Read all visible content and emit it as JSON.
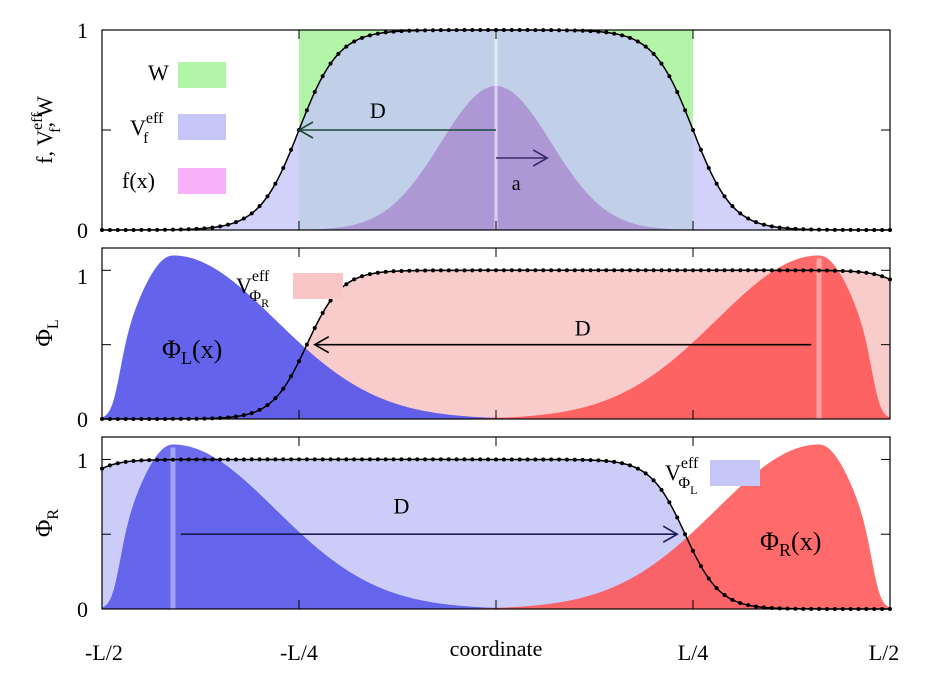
{
  "chart_data": [
    {
      "type": "area",
      "panel": "top",
      "ylabel": {
        "base": "f, V",
        "sup": "eff",
        "sub": "f",
        "tail": ", W"
      },
      "yticks": [
        "0",
        "1"
      ],
      "ylim": [
        0,
        1
      ],
      "xlim": [
        -0.5,
        0.5
      ],
      "legend": [
        {
          "label": "W",
          "color": "#b3f5a8"
        },
        {
          "label": "V",
          "sup": "eff",
          "sub": "f",
          "color": "#c6c6f8"
        },
        {
          "label": "f(x)",
          "color": "#f8b0f8"
        }
      ],
      "series": [
        {
          "name": "W",
          "kind": "box",
          "from": -0.25,
          "to": 0.25,
          "value": 1,
          "color": "#b3f5a8"
        },
        {
          "name": "V_f^eff",
          "kind": "sigmoid",
          "value": 1,
          "edges": [
            -0.25,
            0.25
          ],
          "width": 0.025,
          "color": "#c6c6f8"
        },
        {
          "name": "f(x)",
          "kind": "gaussian",
          "center": 0,
          "peak": 0.72,
          "sigma": 0.07,
          "color": "#a888d0"
        }
      ],
      "annotations": [
        {
          "label": "D",
          "from": 0,
          "to": -0.25,
          "y": 0.5
        },
        {
          "label": "a",
          "from": 0,
          "to": 0.065,
          "y": 0.36
        }
      ]
    },
    {
      "type": "area",
      "panel": "middle",
      "ylabel": {
        "base": "Φ",
        "sub": "L"
      },
      "yticks": [
        "0",
        "1"
      ],
      "ylim": [
        0,
        1.15
      ],
      "xlim": [
        -0.5,
        0.5
      ],
      "legend": [
        {
          "label": "V",
          "sup": "eff",
          "sub": "Φ",
          "subsub": "R",
          "color": "#f8c6c6"
        }
      ],
      "series": [
        {
          "name": "Phi_L(x)",
          "label": "Φ",
          "label_sub": "L",
          "label_tail": "(x)",
          "kind": "skewed-peak",
          "center": -0.41,
          "peak": 1.1,
          "color": "#5252ea"
        },
        {
          "name": "Phi_R(x)",
          "kind": "skewed-peak",
          "center": 0.41,
          "peak": 1.1,
          "color": "#ff5050"
        },
        {
          "name": "V_PhiR^eff",
          "kind": "sigmoid",
          "value": 1,
          "edges": [
            -0.24,
            0.56
          ],
          "width": 0.022,
          "color": "#f8c6c6"
        }
      ],
      "annotations": [
        {
          "label": "D",
          "from": 0.4,
          "to": -0.23,
          "y": 0.5
        }
      ]
    },
    {
      "type": "area",
      "panel": "bottom",
      "ylabel": {
        "base": "Φ",
        "sub": "R"
      },
      "yticks": [
        "0",
        "1"
      ],
      "ylim": [
        0,
        1.15
      ],
      "xlim": [
        -0.5,
        0.5
      ],
      "legend": [
        {
          "label": "V",
          "sup": "eff",
          "sub": "Φ",
          "subsub": "L",
          "color": "#c6c6f8"
        }
      ],
      "series": [
        {
          "name": "Phi_L(x)",
          "kind": "skewed-peak",
          "center": -0.41,
          "peak": 1.1,
          "color": "#5252ea"
        },
        {
          "name": "Phi_R(x)",
          "label": "Φ",
          "label_sub": "R",
          "label_tail": "(x)",
          "kind": "skewed-peak",
          "center": 0.41,
          "peak": 1.1,
          "color": "#ff5050"
        },
        {
          "name": "V_PhiL^eff",
          "kind": "sigmoid",
          "value": 1,
          "edges": [
            -0.56,
            0.24
          ],
          "width": 0.022,
          "color": "#c6c6f8"
        }
      ],
      "annotations": [
        {
          "label": "D",
          "from": -0.4,
          "to": 0.23,
          "y": 0.5
        }
      ]
    }
  ],
  "xaxis": {
    "label": "coordinate",
    "ticks": [
      {
        "value": -0.5,
        "label": "-L/2"
      },
      {
        "value": -0.25,
        "label": "-L/4"
      },
      {
        "value": 0.25,
        "label": "L/4"
      },
      {
        "value": 0.5,
        "label": "L/2"
      }
    ]
  }
}
